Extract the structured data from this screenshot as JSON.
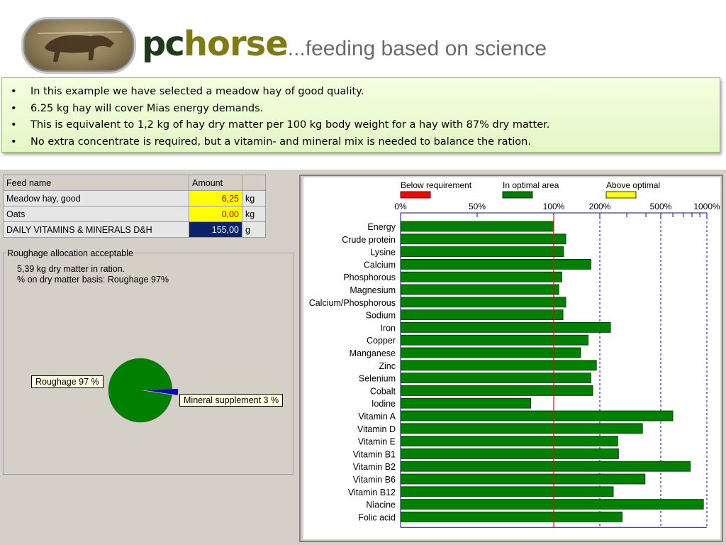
{
  "header": {
    "brand_pc": "pc",
    "brand_horse": "horse",
    "tagline": "...feeding based on science"
  },
  "bullets": [
    "In this example we have selected a meadow hay of good quality.",
    "6.25 kg hay will cover Mias energy demands.",
    "This is equivalent to 1,2 kg of hay dry matter per 100 kg body weight for a hay with 87% dry matter.",
    "No extra concentrate is required, but a vitamin- and mineral mix is needed to balance the ration."
  ],
  "feed_table": {
    "headers": [
      "Feed name",
      "Amount",
      ""
    ],
    "rows": [
      {
        "name": "Meadow hay, good",
        "amount": "6,25",
        "unit": "kg"
      },
      {
        "name": "Oats",
        "amount": "0,00",
        "unit": "kg"
      },
      {
        "name": "DAILY VITAMINS & MINERALS D&H",
        "amount": "155,00",
        "unit": "g"
      }
    ]
  },
  "roughage": {
    "title": "Roughage allocation acceptable",
    "line1": "5,39 kg dry matter in ration.",
    "line2": "% on dry matter basis: Roughage 97%",
    "pie_label_roughage": "Roughage 97 %",
    "pie_label_mineral": "Mineral supplement 3 %",
    "pie_values": [
      97,
      3
    ],
    "pie_colors": [
      "#008000",
      "#0000cc"
    ]
  },
  "chart_data": {
    "type": "bar",
    "orientation": "horizontal",
    "legend": [
      {
        "label": "Below requirement",
        "color": "#ff0000"
      },
      {
        "label": "In optimal area",
        "color": "#008000"
      },
      {
        "label": "Above optimal",
        "color": "#ffff00"
      }
    ],
    "x_ticks": [
      "0%",
      "50%",
      "100%",
      "200%",
      "500%",
      "1000%"
    ],
    "xlim": [
      0,
      1000
    ],
    "requirement_line": 100,
    "categories": [
      "Energy",
      "Crude protein",
      "Lysine",
      "Calcium",
      "Phosphorous",
      "Magnesium",
      "Calcium/Phosphorous",
      "Sodium",
      "Iron",
      "Copper",
      "Manganese",
      "Zinc",
      "Selenium",
      "Cobalt",
      "Iodine",
      "Vitamin A",
      "Vitamin D",
      "Vitamin E",
      "Vitamin B1",
      "Vitamin B2",
      "Vitamin B6",
      "Vitamin B12",
      "Niacine",
      "Folic acid"
    ],
    "values": [
      100,
      120,
      116,
      175,
      113,
      108,
      120,
      115,
      235,
      168,
      150,
      190,
      175,
      180,
      85,
      600,
      380,
      262,
      265,
      780,
      395,
      245,
      950,
      280
    ],
    "bar_color": "#008000"
  }
}
